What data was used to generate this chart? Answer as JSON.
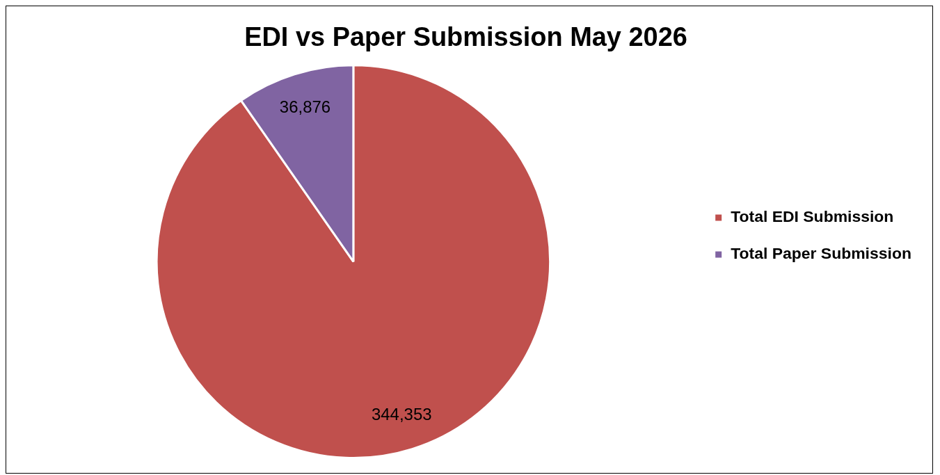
{
  "chart_data": {
    "type": "pie",
    "title": "EDI vs Paper Submission May 2026",
    "categories": [
      "Total EDI Submission",
      "Total Paper Submission"
    ],
    "values": [
      344353,
      36876
    ],
    "colors": [
      "#c0504d",
      "#8064a2"
    ],
    "value_labels": [
      "344,353",
      "36,876"
    ],
    "legend": "right"
  }
}
